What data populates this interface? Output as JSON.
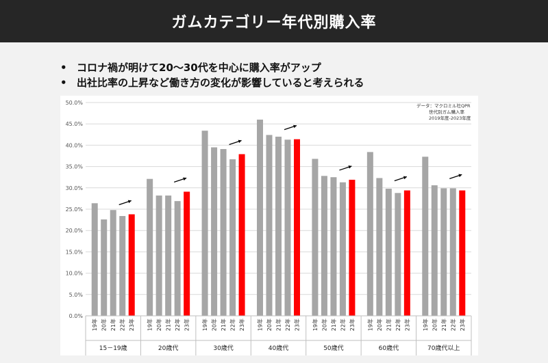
{
  "header": {
    "title": "ガムカテゴリー年代別購入率"
  },
  "bullets": [
    "コロナ禍が明けて20〜30代を中心に購入率がアップ",
    "出社比率の上昇など働き方の変化が影響していると考えられる"
  ],
  "source_note": [
    "データ：マクロミル社QPR",
    "世代別ガム購入率",
    "2019年度-2023年度"
  ],
  "colors": {
    "gray": "#a6a6a6",
    "highlight": "#ff0000",
    "header_bg": "#262626"
  },
  "chart_data": {
    "type": "bar",
    "ylim": [
      0,
      50
    ],
    "yticks": [
      "0.0%",
      "5.0%",
      "10.0%",
      "15.0%",
      "20.0%",
      "25.0%",
      "30.0%",
      "35.0%",
      "40.0%",
      "45.0%",
      "50.0%"
    ],
    "bar_labels": [
      "19年",
      "20年",
      "21年",
      "22年",
      "23年"
    ],
    "groups": [
      {
        "name": "15－19歳",
        "values": [
          26.4,
          22.6,
          24.8,
          23.4,
          23.8
        ]
      },
      {
        "name": "20歳代",
        "values": [
          32.1,
          28.2,
          28.2,
          26.9,
          29.1
        ]
      },
      {
        "name": "30歳代",
        "values": [
          43.4,
          39.5,
          39.1,
          36.7,
          37.9
        ]
      },
      {
        "name": "40歳代",
        "values": [
          46.0,
          42.4,
          42.0,
          41.3,
          41.4
        ]
      },
      {
        "name": "50歳代",
        "values": [
          36.8,
          32.8,
          32.5,
          31.3,
          31.9
        ]
      },
      {
        "name": "60歳代",
        "values": [
          38.4,
          32.3,
          29.8,
          28.8,
          29.4
        ]
      },
      {
        "name": "70歳代以上",
        "values": [
          37.3,
          30.6,
          29.9,
          29.9,
          29.4
        ]
      }
    ]
  }
}
